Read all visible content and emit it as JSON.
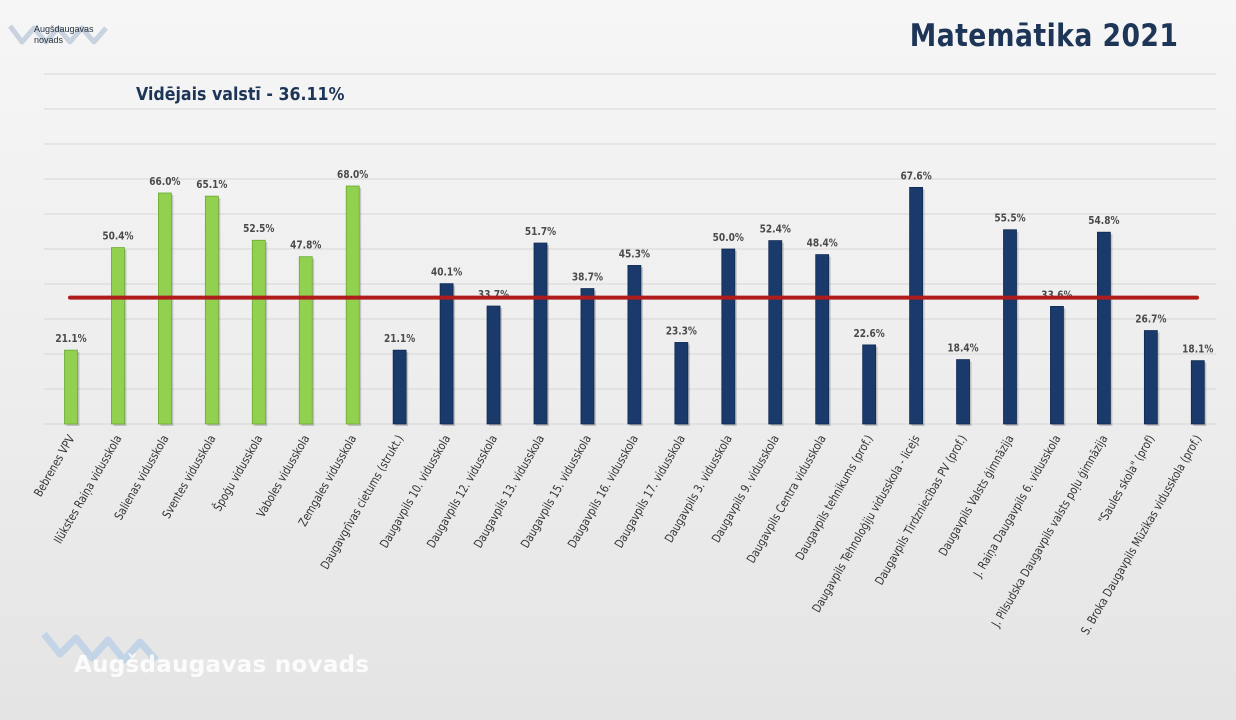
{
  "header": {
    "brand_logo_text": "Augšdaugavas novads",
    "title": "Matemātika 2021",
    "subtitle": "Vidējais valstī - 36.11%"
  },
  "watermark": {
    "text": "Augšdaugavas novads"
  },
  "colors": {
    "green": "#92d050",
    "blue": "#1a3a6b",
    "average_line": "#b01c1c",
    "grid": "#d6d6d6",
    "label": "#4a4a4a"
  },
  "chart_data": {
    "type": "bar",
    "title": "Matemātika 2021",
    "ylim": [
      0,
      100
    ],
    "average_line": {
      "value": 36.11,
      "label": "Vidējais valstī - 36.11%"
    },
    "categories": [
      "Bebrenes VPV",
      "Ilūkstes Raiņa vidusskola",
      "Salienas vidusskola",
      "Sventes vidusskola",
      "Špoģu vidusskola",
      "Vaboles vidusskola",
      "Zemgales vidusskola",
      "Daugavgrīvas cietums (strukt.)",
      "Daugavpils 10. vidusskola",
      "Daugavpils 12. vidusskola",
      "Daugavpils 13. vidusskola",
      "Daugavpils 15. vidusskola",
      "Daugavpils 16. vidusskola",
      "Daugavpils 17. vidusskola",
      "Daugavpils 3. vidusskola",
      "Daugavpils 9. vidusskola",
      "Daugavpils Centra vidusskola",
      "Daugavpils tehnikums (prof.)",
      "Daugavpils Tehnoloģiju vidusskola - licejs",
      "Daugavpils Tirdzniecības PV (prof.)",
      "Daugavpils Valsts ģimnāzija",
      "J. Raiņa Daugavpils 6. vidusskola",
      "J. Pilsudska Daugavpils valsts poļu ģimnāzija",
      "\"Saules skola\" (prof)",
      "S. Broka Daugavpils Mūzikas vidusskola (prof.)"
    ],
    "values": [
      21.1,
      50.4,
      66.0,
      65.1,
      52.5,
      47.8,
      68.0,
      21.1,
      40.1,
      33.7,
      51.7,
      38.7,
      45.3,
      23.3,
      50.0,
      52.4,
      48.4,
      22.6,
      67.6,
      18.4,
      55.5,
      33.6,
      54.8,
      26.7,
      18.1
    ],
    "value_labels": [
      "21.1%",
      "50.4%",
      "66.0%",
      "65.1%",
      "52.5%",
      "47.8%",
      "68.0%",
      "21.1%",
      "40.1%",
      "33.7%",
      "51.7%",
      "38.7%",
      "45.3%",
      "23.3%",
      "50.0%",
      "52.4%",
      "48.4%",
      "22.6%",
      "67.6%",
      "18.4%",
      "55.5%",
      "33.6%",
      "54.8%",
      "26.7%",
      "18.1%"
    ],
    "groups": [
      "green",
      "green",
      "green",
      "green",
      "green",
      "green",
      "green",
      "blue",
      "blue",
      "blue",
      "blue",
      "blue",
      "blue",
      "blue",
      "blue",
      "blue",
      "blue",
      "blue",
      "blue",
      "blue",
      "blue",
      "blue",
      "blue",
      "blue",
      "blue"
    ]
  }
}
